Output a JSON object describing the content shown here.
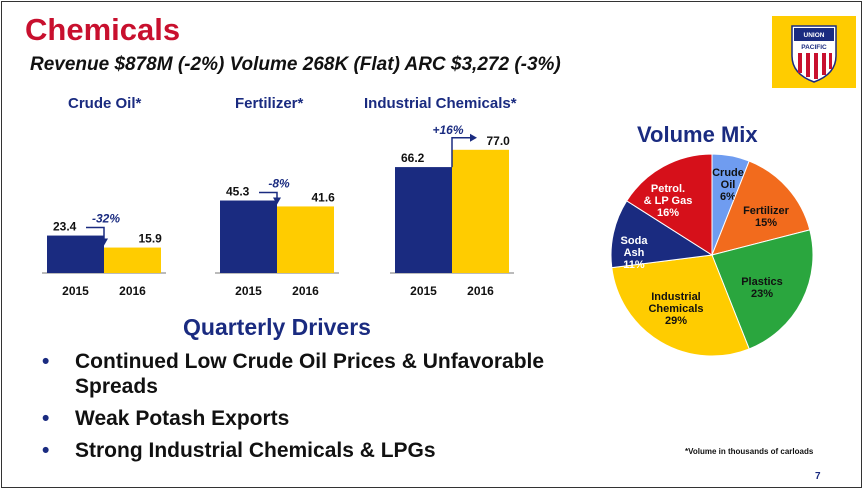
{
  "slide": {
    "title": "Chemicals",
    "subtitle": "Revenue $878M (-2%) Volume 268K (Flat) ARC $3,272 (-3%)",
    "drivers_title": "Quarterly Drivers",
    "bullets": [
      "Continued Low Crude Oil Prices & Unfavorable Spreads",
      "Weak Potash Exports",
      "Strong Industrial Chemicals & LPGs"
    ],
    "bullet_glyph": "•",
    "mix_title": "Volume Mix",
    "footnote": "*Volume in thousands of carloads",
    "page_number": "7",
    "logo": {
      "text_top": "UNION",
      "text_bottom": "PACIFIC",
      "bg": "#ffcc00",
      "shield_red": "#c8102e",
      "shield_blue": "#1a2b80"
    }
  },
  "colors": {
    "title_red": "#c8102e",
    "navy": "#1a2b80",
    "gold": "#ffcc00"
  },
  "chart_data": [
    {
      "type": "bar",
      "panels": [
        {
          "title": "Crude Oil*",
          "categories": [
            "2015",
            "2016"
          ],
          "values": [
            23.4,
            15.9
          ],
          "labels": [
            "23.4",
            "15.9"
          ],
          "change": "-32%"
        },
        {
          "title": "Fertilizer*",
          "categories": [
            "2015",
            "2016"
          ],
          "values": [
            45.3,
            41.6
          ],
          "labels": [
            "45.3",
            "41.6"
          ],
          "change": "-8%"
        },
        {
          "title": "Industrial Chemicals*",
          "categories": [
            "2015",
            "2016"
          ],
          "values": [
            66.2,
            77.0
          ],
          "labels": [
            "66.2",
            "77.0"
          ],
          "change": "+16%"
        }
      ],
      "series_colors": [
        "#1a2b80",
        "#ffcc00"
      ]
    },
    {
      "type": "pie",
      "title": "Volume Mix",
      "slices": [
        {
          "label": "Crude Oil",
          "value": 6,
          "pct": "6%",
          "color": "#6f9cf0"
        },
        {
          "label": "Fertilizer",
          "value": 15,
          "pct": "15%",
          "color": "#f26b1d"
        },
        {
          "label": "Plastics",
          "value": 23,
          "pct": "23%",
          "color": "#2aa63e"
        },
        {
          "label": "Industrial Chemicals",
          "value": 29,
          "pct": "29%",
          "color": "#ffcc00"
        },
        {
          "label": "Soda Ash",
          "value": 11,
          "pct": "11%",
          "color": "#1a2b80"
        },
        {
          "label": "Petrol. & LP Gas",
          "value": 16,
          "pct": "16%",
          "color": "#d6101a"
        }
      ]
    }
  ]
}
